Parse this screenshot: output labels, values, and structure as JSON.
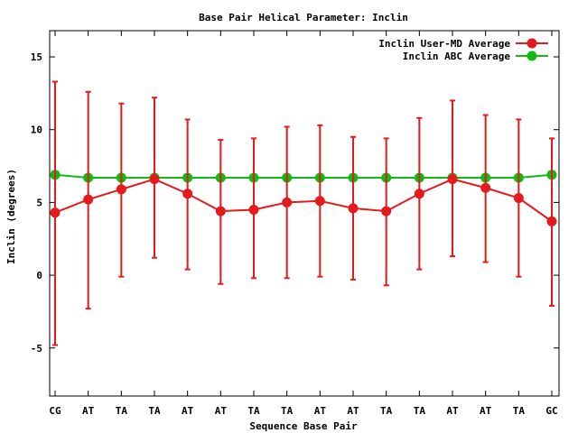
{
  "chart_data": {
    "type": "line",
    "title": "Base Pair Helical Parameter: Inclin",
    "xlabel": "Sequence Base Pair",
    "ylabel": "Inclin (degrees)",
    "categories": [
      "CG",
      "AT",
      "TA",
      "TA",
      "AT",
      "AT",
      "TA",
      "TA",
      "AT",
      "AT",
      "TA",
      "TA",
      "AT",
      "AT",
      "TA",
      "GC"
    ],
    "ylim": [
      -8.3,
      16.8
    ],
    "yticks": [
      -5,
      0,
      5,
      10,
      15
    ],
    "grid": false,
    "legend_position": "top-right",
    "series": [
      {
        "name": "Inclin User-MD Average",
        "color": "#e41a1c",
        "values": [
          4.3,
          5.2,
          5.9,
          6.6,
          5.6,
          4.4,
          4.5,
          5.0,
          5.1,
          4.6,
          4.4,
          5.6,
          6.6,
          6.0,
          5.3,
          3.7
        ],
        "error_low": [
          -4.8,
          -2.3,
          -0.1,
          1.2,
          0.4,
          -0.6,
          -0.2,
          -0.2,
          -0.1,
          -0.3,
          -0.7,
          0.4,
          1.3,
          0.9,
          -0.1,
          -2.1
        ],
        "error_high": [
          13.3,
          12.6,
          11.8,
          12.2,
          10.7,
          9.3,
          9.4,
          10.2,
          10.3,
          9.5,
          9.4,
          10.8,
          12.0,
          11.0,
          10.7,
          9.4
        ]
      },
      {
        "name": "Inclin ABC Average",
        "color": "#11bb11",
        "values": [
          6.9,
          6.7,
          6.7,
          6.7,
          6.7,
          6.7,
          6.7,
          6.7,
          6.7,
          6.7,
          6.7,
          6.7,
          6.7,
          6.7,
          6.7,
          6.9
        ]
      }
    ]
  }
}
